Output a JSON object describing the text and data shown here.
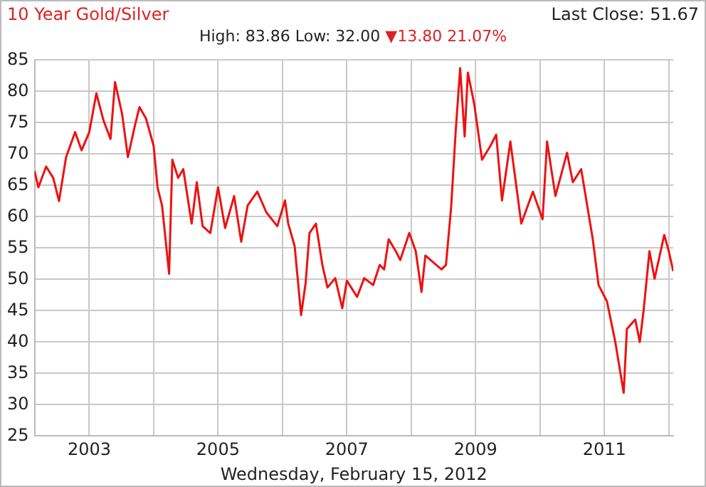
{
  "chart_data": {
    "type": "line",
    "title": "10 Year Gold/Silver",
    "subtitle": "High: 83.86 Low: 32.00",
    "xlabel": "Wednesday, February 15, 2012",
    "annotations": [
      "Last Close: 51.67",
      "▼13.80 21.07%"
    ],
    "x": [
      2002.15,
      2002.21,
      2002.33,
      2002.44,
      2002.53,
      2002.64,
      2002.78,
      2002.88,
      2003.0,
      2003.11,
      2003.22,
      2003.33,
      2003.4,
      2003.51,
      2003.6,
      2003.71,
      2003.78,
      2003.88,
      2004.0,
      2004.06,
      2004.13,
      2004.24,
      2004.29,
      2004.38,
      2004.46,
      2004.59,
      2004.67,
      2004.76,
      2004.88,
      2005.0,
      2005.11,
      2005.25,
      2005.36,
      2005.46,
      2005.61,
      2005.75,
      2005.92,
      2006.04,
      2006.09,
      2006.19,
      2006.29,
      2006.36,
      2006.42,
      2006.52,
      2006.62,
      2006.7,
      2006.82,
      2006.93,
      2007.0,
      2007.16,
      2007.27,
      2007.41,
      2007.51,
      2007.58,
      2007.65,
      2007.76,
      2007.83,
      2007.97,
      2008.07,
      2008.16,
      2008.22,
      2008.47,
      2008.54,
      2008.62,
      2008.69,
      2008.76,
      2008.83,
      2008.88,
      2008.98,
      2009.1,
      2009.23,
      2009.32,
      2009.41,
      2009.54,
      2009.71,
      2009.89,
      2010.04,
      2010.11,
      2010.24,
      2010.42,
      2010.51,
      2010.64,
      2010.82,
      2010.91,
      2011.04,
      2011.17,
      2011.3,
      2011.35,
      2011.48,
      2011.55,
      2011.61,
      2011.7,
      2011.78,
      2011.93,
      2012.0,
      2012.07
    ],
    "series": [
      {
        "color": "#ee1111",
        "values": [
          67.3,
          64.7,
          68.0,
          66.2,
          62.5,
          69.5,
          73.5,
          70.6,
          73.5,
          79.7,
          75.4,
          72.4,
          81.5,
          76.4,
          69.5,
          74.6,
          77.5,
          75.7,
          71.3,
          64.7,
          61.8,
          50.9,
          69.1,
          66.2,
          67.6,
          58.9,
          65.5,
          58.5,
          57.4,
          64.7,
          58.2,
          63.3,
          56.0,
          61.8,
          64.0,
          60.7,
          58.5,
          62.6,
          58.9,
          55.3,
          44.3,
          49.4,
          57.4,
          58.9,
          52.3,
          48.7,
          50.2,
          45.4,
          49.8,
          47.2,
          50.2,
          49.1,
          52.3,
          51.6,
          56.4,
          54.5,
          53.1,
          57.4,
          54.5,
          48.0,
          53.8,
          51.6,
          52.3,
          61.5,
          73.5,
          83.7,
          72.8,
          83.0,
          77.9,
          69.1,
          71.3,
          73.1,
          62.6,
          72.0,
          58.9,
          64.0,
          59.6,
          72.0,
          63.3,
          70.2,
          65.5,
          67.6,
          56.4,
          49.1,
          46.5,
          40.0,
          31.9,
          42.1,
          43.6,
          40.0,
          45.1,
          54.5,
          50.1,
          57.1,
          54.5,
          51.3
        ]
      }
    ],
    "xlim": [
      2002.15,
      2012.07
    ],
    "xticks": [
      {
        "value": 2003,
        "label": "2003"
      },
      {
        "value": 2004,
        "label": null
      },
      {
        "value": 2005,
        "label": "2005"
      },
      {
        "value": 2006,
        "label": null
      },
      {
        "value": 2007,
        "label": "2007"
      },
      {
        "value": 2008,
        "label": null
      },
      {
        "value": 2009,
        "label": "2009"
      },
      {
        "value": 2010,
        "label": null
      },
      {
        "value": 2011,
        "label": "2011"
      },
      {
        "value": 2012,
        "label": null
      }
    ],
    "ylim": [
      25,
      85
    ],
    "yticks": [
      25,
      30,
      35,
      40,
      45,
      50,
      55,
      60,
      65,
      70,
      75,
      80,
      85
    ],
    "grid": true,
    "legend": false,
    "marker": "none",
    "line_style": "solid"
  }
}
